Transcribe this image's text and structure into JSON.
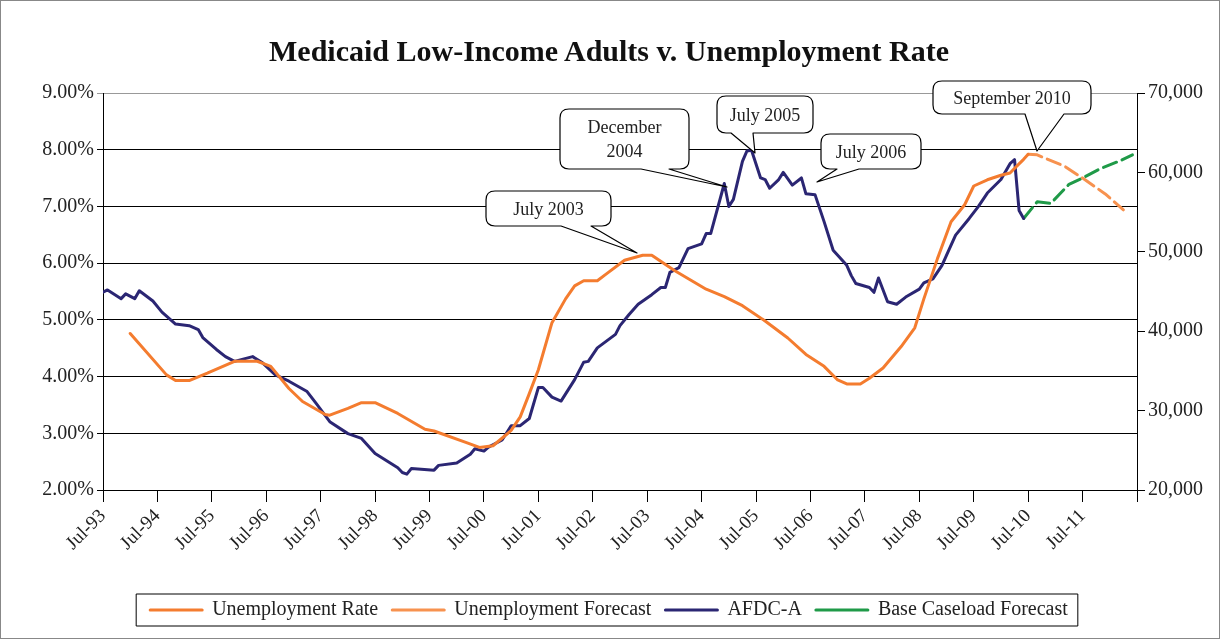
{
  "chart_data": {
    "type": "line",
    "title": "Medicaid Low-Income Adults v. Unemployment Rate",
    "legend": "bottom",
    "grid": "y",
    "marker": "none",
    "xlim": [
      "1993-07",
      "2012-07"
    ],
    "xticks": [
      {
        "value": "1993-07",
        "label": "Jul-93"
      },
      {
        "value": "1994-07",
        "label": "Jul-94"
      },
      {
        "value": "1995-07",
        "label": "Jul-95"
      },
      {
        "value": "1996-07",
        "label": "Jul-96"
      },
      {
        "value": "1997-07",
        "label": "Jul-97"
      },
      {
        "value": "1998-07",
        "label": "Jul-98"
      },
      {
        "value": "1999-07",
        "label": "Jul-99"
      },
      {
        "value": "2000-07",
        "label": "Jul-00"
      },
      {
        "value": "2001-07",
        "label": "Jul-01"
      },
      {
        "value": "2002-07",
        "label": "Jul-02"
      },
      {
        "value": "2003-07",
        "label": "Jul-03"
      },
      {
        "value": "2004-07",
        "label": "Jul-04"
      },
      {
        "value": "2005-07",
        "label": "Jul-05"
      },
      {
        "value": "2006-07",
        "label": "Jul-06"
      },
      {
        "value": "2007-07",
        "label": "Jul-07"
      },
      {
        "value": "2008-07",
        "label": "Jul-08"
      },
      {
        "value": "2009-07",
        "label": "Jul-09"
      },
      {
        "value": "2010-07",
        "label": "Jul-10"
      },
      {
        "value": "2011-07",
        "label": "Jul-11"
      },
      {
        "value": "2012-07",
        "label": null
      }
    ],
    "ylim": [
      2,
      9
    ],
    "yticks": [
      {
        "value": 2,
        "label": "2.00%"
      },
      {
        "value": 3,
        "label": "3.00%"
      },
      {
        "value": 4,
        "label": "4.00%"
      },
      {
        "value": 5,
        "label": "5.00%"
      },
      {
        "value": 6,
        "label": "6.00%"
      },
      {
        "value": 7,
        "label": "7.00%"
      },
      {
        "value": 8,
        "label": "8.00%"
      },
      {
        "value": 9,
        "label": "9.00%"
      }
    ],
    "y2lim": [
      20000,
      70000
    ],
    "y2ticks": [
      {
        "value": 20000,
        "label": "20,000"
      },
      {
        "value": 30000,
        "label": "30,000"
      },
      {
        "value": 40000,
        "label": "40,000"
      },
      {
        "value": 50000,
        "label": "50,000"
      },
      {
        "value": 60000,
        "label": "60,000"
      },
      {
        "value": 70000,
        "label": "70,000"
      }
    ],
    "annotations": [
      "July 2003",
      "December 2004",
      "July 2005",
      "July 2006",
      "September 2010"
    ],
    "series": [
      {
        "name": "Unemployment Rate",
        "type": "line",
        "line_style": "solid",
        "color": "#f47c2f",
        "x": [
          "1994-01",
          "1994-09",
          "1994-11",
          "1995-02",
          "1995-06",
          "1995-12",
          "1996-05",
          "1996-08",
          "1996-12",
          "1997-03",
          "1997-08",
          "1997-09",
          "1998-01",
          "1998-04",
          "1998-07",
          "1998-12",
          "1999-06",
          "1999-08",
          "2000-03",
          "2000-06",
          "2000-09",
          "2001-01",
          "2001-03",
          "2001-05",
          "2001-07",
          "2001-10",
          "2002-01",
          "2002-03",
          "2002-05",
          "2002-08",
          "2002-10",
          "2003-02",
          "2003-06",
          "2003-08",
          "2004-01",
          "2004-08",
          "2004-12",
          "2005-04",
          "2005-09",
          "2006-02",
          "2006-06",
          "2006-10",
          "2007-01",
          "2007-03",
          "2007-06",
          "2007-08",
          "2007-11",
          "2008-03",
          "2008-06",
          "2008-08",
          "2008-11",
          "2009-02",
          "2009-05",
          "2009-07",
          "2009-10",
          "2010-01",
          "2010-03",
          "2010-06",
          "2010-07"
        ],
        "values": [
          4.76,
          4.03,
          3.93,
          3.93,
          4.06,
          4.27,
          4.27,
          4.18,
          3.79,
          3.56,
          3.33,
          3.32,
          3.44,
          3.54,
          3.54,
          3.35,
          3.07,
          3.04,
          2.84,
          2.75,
          2.78,
          3.05,
          3.29,
          3.7,
          4.12,
          4.95,
          5.37,
          5.6,
          5.69,
          5.69,
          5.81,
          6.05,
          6.14,
          6.14,
          5.87,
          5.54,
          5.41,
          5.25,
          4.98,
          4.68,
          4.39,
          4.18,
          3.94,
          3.87,
          3.87,
          3.97,
          4.15,
          4.53,
          4.86,
          5.37,
          6.08,
          6.73,
          7.03,
          7.36,
          7.47,
          7.55,
          7.59,
          7.83,
          7.92
        ]
      },
      {
        "name": "Unemployment Forecast",
        "type": "line",
        "line_style": "dashed",
        "color": "#f7924f",
        "x": [
          "2010-07",
          "2010-09",
          "2010-11",
          "2011-03",
          "2011-07",
          "2011-12",
          "2012-04"
        ],
        "values": [
          7.92,
          7.91,
          7.84,
          7.71,
          7.5,
          7.22,
          6.94
        ]
      },
      {
        "name": "AFDC-A",
        "type": "line",
        "line_style": "solid",
        "axis": "y2",
        "color": "#2b2673",
        "x": [
          "1993-07",
          "1993-08",
          "1993-11",
          "1993-12",
          "1994-02",
          "1994-03",
          "1994-06",
          "1994-08",
          "1994-11",
          "1995-02",
          "1995-04",
          "1995-05",
          "1995-08",
          "1995-10",
          "1995-12",
          "1996-04",
          "1996-06",
          "1996-09",
          "1996-12",
          "1997-04",
          "1997-06",
          "1997-09",
          "1998-01",
          "1998-04",
          "1998-07",
          "1998-12",
          "1999-01",
          "1999-02",
          "1999-03",
          "1999-08",
          "1999-09",
          "2000-01",
          "2000-04",
          "2000-05",
          "2000-07",
          "2000-08",
          "2000-11",
          "2001-01",
          "2001-03",
          "2001-05",
          "2001-07",
          "2001-08",
          "2001-10",
          "2001-12",
          "2002-03",
          "2002-05",
          "2002-06",
          "2002-08",
          "2002-12",
          "2003-01",
          "2003-03",
          "2003-05",
          "2003-08",
          "2003-10",
          "2003-11",
          "2003-12",
          "2004-02",
          "2004-04",
          "2004-07",
          "2004-08",
          "2004-09",
          "2004-12",
          "2005-01",
          "2005-02",
          "2005-04",
          "2005-05",
          "2005-06",
          "2005-08",
          "2005-09",
          "2005-10",
          "2005-12",
          "2006-01",
          "2006-03",
          "2006-05",
          "2006-06",
          "2006-08",
          "2006-10",
          "2006-12",
          "2007-03",
          "2007-04",
          "2007-05",
          "2007-08",
          "2007-09",
          "2007-10",
          "2007-12",
          "2008-02",
          "2008-04",
          "2008-07",
          "2008-08",
          "2008-10",
          "2008-12",
          "2009-03",
          "2009-06",
          "2009-08",
          "2009-10",
          "2010-01",
          "2010-03",
          "2010-04",
          "2010-05",
          "2010-06"
        ],
        "values": [
          44900,
          45200,
          44100,
          44700,
          44100,
          45100,
          43800,
          42400,
          40900,
          40700,
          40200,
          39200,
          37700,
          36800,
          36200,
          36800,
          36100,
          34500,
          33700,
          32400,
          30900,
          28600,
          27100,
          26500,
          24600,
          22800,
          22200,
          22000,
          22700,
          22500,
          23100,
          23400,
          24500,
          25200,
          24900,
          25400,
          26300,
          28100,
          28100,
          29000,
          32900,
          32900,
          31700,
          31200,
          33900,
          36100,
          36200,
          37900,
          39600,
          40700,
          42100,
          43400,
          44600,
          45500,
          45500,
          47400,
          48000,
          50400,
          51000,
          52300,
          52300,
          58600,
          55700,
          56600,
          61400,
          62700,
          62800,
          59300,
          59100,
          58000,
          59100,
          60000,
          58400,
          59300,
          57300,
          57200,
          53800,
          50200,
          48300,
          47000,
          46000,
          45500,
          44900,
          46700,
          43700,
          43400,
          44300,
          45300,
          46100,
          46600,
          48300,
          52100,
          54200,
          55700,
          57400,
          59100,
          61100,
          61600,
          55200,
          54200
        ]
      },
      {
        "name": "Base Caseload Forecast",
        "type": "line",
        "line_style": "dashed",
        "axis": "y2",
        "color": "#1f9a48",
        "x": [
          "2010-06",
          "2010-09",
          "2010-12",
          "2011-04",
          "2011-07",
          "2011-11",
          "2012-03",
          "2012-06"
        ],
        "values": [
          54200,
          56300,
          56100,
          58500,
          59300,
          60500,
          61400,
          62200
        ]
      }
    ]
  }
}
